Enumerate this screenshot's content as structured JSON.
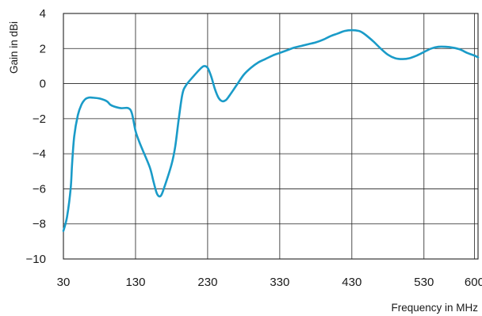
{
  "chart_data": {
    "type": "line",
    "title": "",
    "xlabel": "Frequency in MHz",
    "ylabel": "Gain in dBi",
    "xlim": [
      30,
      605
    ],
    "ylim": [
      -10,
      4
    ],
    "x_ticks": [
      30,
      130,
      230,
      330,
      430,
      530,
      600
    ],
    "y_ticks": [
      4,
      2,
      0,
      -2,
      -4,
      -6,
      -8,
      -10
    ],
    "x_tick_labels": [
      "30",
      "130",
      "230",
      "330",
      "430",
      "530",
      "600"
    ],
    "y_tick_labels": [
      "4",
      "2",
      "0",
      "−2",
      "−4",
      "−6",
      "−8",
      "−10"
    ],
    "grid": true,
    "legend": "none",
    "series": [
      {
        "color": "#1a9bc8",
        "x": [
          30,
          35,
          40,
          42,
          45,
          50,
          55,
          60,
          65,
          70,
          80,
          90,
          95,
          100,
          110,
          120,
          125,
          130,
          135,
          140,
          150,
          155,
          160,
          165,
          170,
          180,
          185,
          190,
          195,
          200,
          210,
          220,
          225,
          230,
          235,
          240,
          245,
          250,
          255,
          260,
          270,
          280,
          290,
          300,
          310,
          320,
          330,
          340,
          350,
          360,
          370,
          380,
          390,
          400,
          410,
          420,
          430,
          440,
          445,
          450,
          460,
          470,
          480,
          490,
          500,
          510,
          520,
          530,
          540,
          550,
          560,
          570,
          580,
          590,
          600,
          605
        ],
        "y": [
          -8.4,
          -7.6,
          -6.0,
          -4.6,
          -3.0,
          -1.8,
          -1.2,
          -0.9,
          -0.8,
          -0.8,
          -0.85,
          -1.0,
          -1.2,
          -1.3,
          -1.4,
          -1.4,
          -1.7,
          -2.7,
          -3.3,
          -3.8,
          -4.8,
          -5.6,
          -6.3,
          -6.4,
          -5.9,
          -4.6,
          -3.6,
          -2.0,
          -0.6,
          -0.1,
          0.4,
          0.85,
          1.0,
          0.9,
          0.4,
          -0.3,
          -0.8,
          -1.0,
          -0.95,
          -0.7,
          -0.1,
          0.5,
          0.9,
          1.2,
          1.4,
          1.6,
          1.75,
          1.9,
          2.05,
          2.15,
          2.25,
          2.35,
          2.5,
          2.7,
          2.85,
          3.0,
          3.05,
          3.0,
          2.9,
          2.75,
          2.4,
          2.0,
          1.65,
          1.45,
          1.4,
          1.45,
          1.6,
          1.8,
          2.0,
          2.1,
          2.1,
          2.05,
          1.95,
          1.75,
          1.6,
          1.5
        ]
      }
    ]
  }
}
